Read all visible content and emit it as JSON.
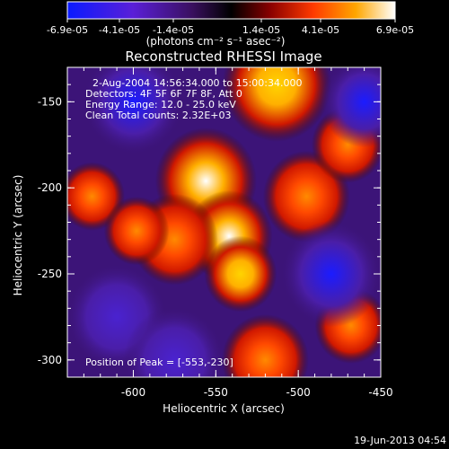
{
  "colorbar": {
    "ticks": [
      "-6.9e-05",
      "-4.1e-05",
      "-1.4e-05",
      "1.4e-05",
      "4.1e-05",
      "6.9e-05"
    ],
    "unit_label": "(photons cm⁻² s⁻¹ asec⁻²)",
    "colors": [
      "#0a1bff",
      "#6c1fb5",
      "#000000",
      "#d11a00",
      "#ff9a00",
      "#ffffff"
    ]
  },
  "plot": {
    "title": "Reconstructed RHESSI Image",
    "xlabel": "Heliocentric X (arcsec)",
    "ylabel": "Heliocentric Y (arcsec)",
    "xticks": [
      "-600",
      "-550",
      "-500",
      "-450"
    ],
    "yticks": [
      "-150",
      "-200",
      "-250",
      "-300"
    ],
    "info_lines": [
      "2-Aug-2004 14:56:34.000 to 15:00:34.000",
      "Detectors: 4F 5F 6F 7F 8F, Att 0",
      "Energy Range: 12.0 - 25.0 keV",
      "Clean     Total counts: 2.32E+03"
    ],
    "peak_label": "Position of Peak = [-553,-230]",
    "footer_date": "19-Jun-2013 04:54"
  },
  "chart_data": {
    "type": "heatmap",
    "title": "Reconstructed RHESSI Image",
    "xlabel": "Heliocentric X (arcsec)",
    "ylabel": "Heliocentric Y (arcsec)",
    "xlim": [
      -640,
      -450
    ],
    "ylim": [
      -310,
      -130
    ],
    "color_range": [
      -6.9e-05,
      6.9e-05
    ],
    "peak": [
      -553,
      -230
    ],
    "sources": [
      {
        "x": -556,
        "y": -196,
        "value": 6.9e-05,
        "spread": 14
      },
      {
        "x": -542,
        "y": -228,
        "value": 6.2e-05,
        "spread": 12
      },
      {
        "x": -535,
        "y": -250,
        "value": 4e-05,
        "spread": 10
      },
      {
        "x": -513,
        "y": -140,
        "value": 5e-05,
        "spread": 15
      },
      {
        "x": -495,
        "y": -205,
        "value": 3e-05,
        "spread": 12
      },
      {
        "x": -575,
        "y": -230,
        "value": 3e-05,
        "spread": 12
      },
      {
        "x": -625,
        "y": -205,
        "value": 2.5e-05,
        "spread": 9
      },
      {
        "x": -598,
        "y": -225,
        "value": 1.8e-05,
        "spread": 9
      },
      {
        "x": -468,
        "y": -280,
        "value": 3e-05,
        "spread": 10
      },
      {
        "x": -520,
        "y": -300,
        "value": 2e-05,
        "spread": 12
      },
      {
        "x": -470,
        "y": -175,
        "value": 1.5e-05,
        "spread": 10
      },
      {
        "x": -600,
        "y": -150,
        "value": -4.1e-05,
        "spread": 14
      },
      {
        "x": -460,
        "y": -150,
        "value": -4.5e-05,
        "spread": 12
      },
      {
        "x": -610,
        "y": -275,
        "value": -3.5e-05,
        "spread": 14
      },
      {
        "x": -480,
        "y": -250,
        "value": -4.1e-05,
        "spread": 14
      },
      {
        "x": -575,
        "y": -300,
        "value": -3e-05,
        "spread": 14
      }
    ]
  }
}
